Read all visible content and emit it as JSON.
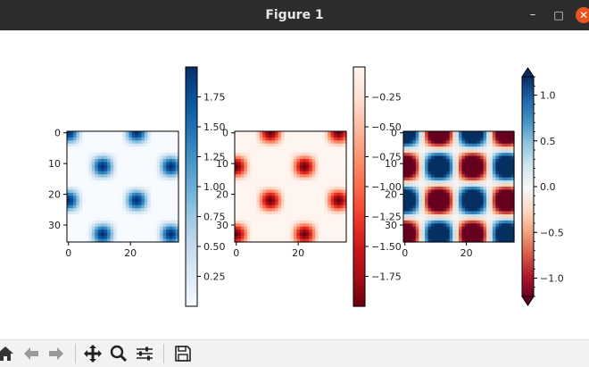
{
  "window": {
    "title": "Figure 1"
  },
  "window_controls": {
    "minimize": "–",
    "maximize": "□",
    "close": "✕"
  },
  "toolbar": {
    "icons": [
      "home-icon",
      "back-icon",
      "forward-icon",
      "pan-icon",
      "zoom-icon",
      "configure-subplots-icon",
      "save-icon"
    ]
  },
  "chart_data": [
    {
      "type": "heatmap",
      "colormap": "Blues",
      "xticks": [
        0,
        20
      ],
      "yticks": [
        0,
        10,
        20,
        30
      ],
      "xlim": [
        0,
        36
      ],
      "ylim": [
        0,
        36
      ],
      "colorbar": {
        "range": [
          0.0,
          2.0
        ],
        "ticks": [
          "0.25",
          "0.50",
          "0.75",
          "1.00",
          "1.25",
          "1.50",
          "1.75"
        ],
        "tick_values": [
          0.25,
          0.5,
          0.75,
          1.0,
          1.25,
          1.5,
          1.75
        ],
        "extend": "neither"
      }
    },
    {
      "type": "heatmap",
      "colormap": "Reds_r",
      "xticks": [
        0,
        20
      ],
      "yticks": [
        0,
        10,
        20,
        30
      ],
      "xlim": [
        0,
        36
      ],
      "ylim": [
        0,
        36
      ],
      "colorbar": {
        "range": [
          -2.0,
          0.0
        ],
        "ticks": [
          "−0.25",
          "−0.50",
          "−0.75",
          "−1.00",
          "−1.25",
          "−1.50",
          "−1.75"
        ],
        "tick_values": [
          -0.25,
          -0.5,
          -0.75,
          -1.0,
          -1.25,
          -1.5,
          -1.75
        ],
        "extend": "neither"
      }
    },
    {
      "type": "heatmap",
      "colormap": "RdBu",
      "xticks": [
        0,
        20
      ],
      "yticks": [
        0,
        10,
        20,
        30
      ],
      "xlim": [
        0,
        36
      ],
      "ylim": [
        0,
        36
      ],
      "colorbar": {
        "range": [
          -1.2,
          1.2
        ],
        "ticks": [
          "1.0",
          "0.5",
          "0.0",
          "−0.5",
          "−1.0"
        ],
        "tick_values": [
          1.0,
          0.5,
          0.0,
          -0.5,
          -1.0
        ],
        "extend": "both"
      }
    }
  ]
}
